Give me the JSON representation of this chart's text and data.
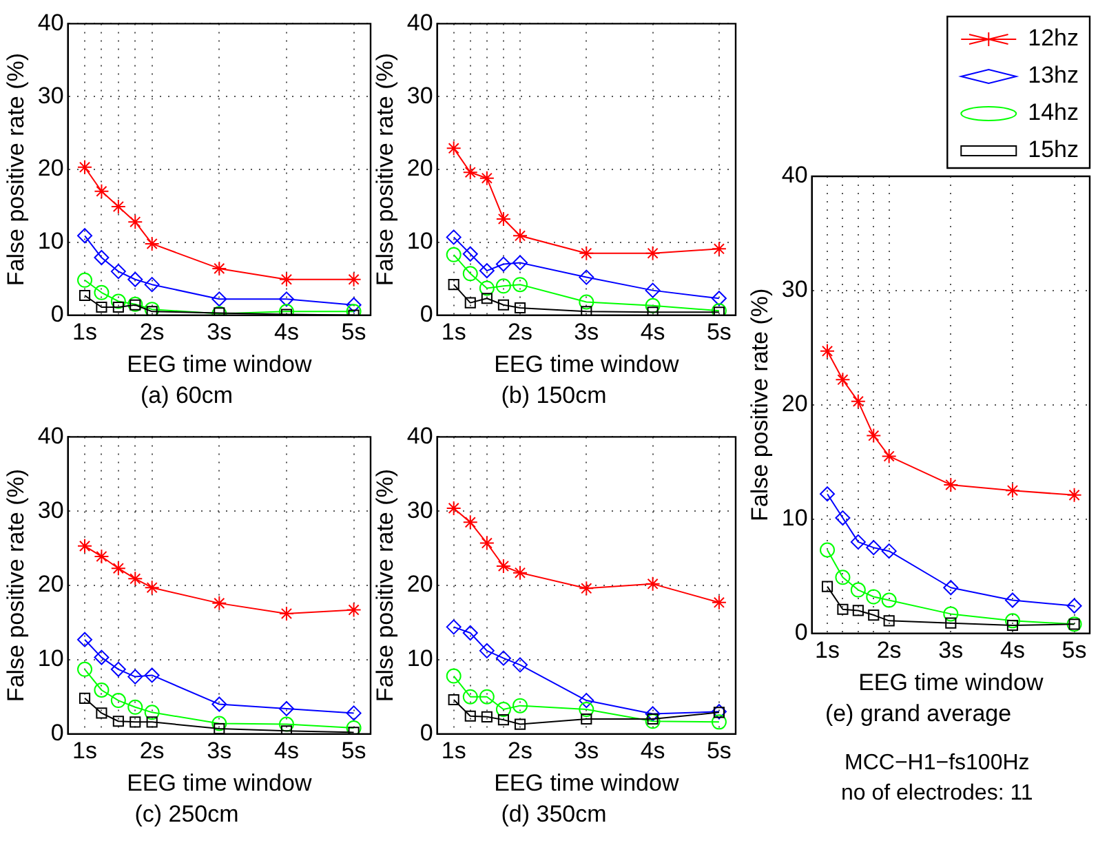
{
  "chart_data": [
    {
      "type": "line",
      "title": "(a) 60cm",
      "xlabel": "EEG time window",
      "ylabel": "False positive rate (%)",
      "x": [
        1,
        1.25,
        1.5,
        1.75,
        2,
        3,
        4,
        5
      ],
      "xlim": [
        0.75,
        5.25
      ],
      "xticks": [
        {
          "value": 1,
          "label": "1s"
        },
        {
          "value": 1.25,
          "label": null
        },
        {
          "value": 1.5,
          "label": null
        },
        {
          "value": 1.75,
          "label": null
        },
        {
          "value": 2,
          "label": "2s"
        },
        {
          "value": 3,
          "label": "3s"
        },
        {
          "value": 4,
          "label": "4s"
        },
        {
          "value": 5,
          "label": "5s"
        }
      ],
      "ylim": [
        0,
        40
      ],
      "yticks": [
        0,
        10,
        20,
        30,
        40
      ],
      "grid": true,
      "legend": false,
      "series": [
        {
          "color": "#ff0000",
          "marker": "cross",
          "values": [
            20.3,
            17.0,
            14.9,
            12.8,
            9.8,
            6.4,
            4.9,
            4.9
          ]
        },
        {
          "color": "#0000ff",
          "marker": "diamond",
          "values": [
            10.9,
            7.9,
            6.0,
            4.9,
            4.2,
            2.2,
            2.2,
            1.4
          ]
        },
        {
          "color": "#00ff00",
          "marker": "circle",
          "values": [
            4.8,
            3.1,
            1.9,
            1.5,
            0.8,
            0.2,
            0.5,
            0.5
          ]
        },
        {
          "color": "#000000",
          "marker": "square",
          "values": [
            2.7,
            1.1,
            1.1,
            1.4,
            0.5,
            0.3,
            0.1,
            0
          ]
        }
      ]
    },
    {
      "type": "line",
      "title": "(b) 150cm",
      "xlabel": "EEG time window",
      "ylabel": "False positive rate (%)",
      "x": [
        1,
        1.25,
        1.5,
        1.75,
        2,
        3,
        4,
        5
      ],
      "xlim": [
        0.75,
        5.25
      ],
      "xticks": [
        {
          "value": 1,
          "label": "1s"
        },
        {
          "value": 1.25,
          "label": null
        },
        {
          "value": 1.5,
          "label": null
        },
        {
          "value": 1.75,
          "label": null
        },
        {
          "value": 2,
          "label": "2s"
        },
        {
          "value": 3,
          "label": "3s"
        },
        {
          "value": 4,
          "label": "4s"
        },
        {
          "value": 5,
          "label": "5s"
        }
      ],
      "ylim": [
        0,
        40
      ],
      "yticks": [
        0,
        10,
        20,
        30,
        40
      ],
      "grid": true,
      "legend": false,
      "series": [
        {
          "color": "#ff0000",
          "marker": "cross",
          "values": [
            22.9,
            19.6,
            18.8,
            13.2,
            10.9,
            8.5,
            8.5,
            9.1
          ]
        },
        {
          "color": "#0000ff",
          "marker": "diamond",
          "values": [
            10.7,
            8.4,
            6.1,
            7.0,
            7.2,
            5.2,
            3.4,
            2.3
          ]
        },
        {
          "color": "#00ff00",
          "marker": "circle",
          "values": [
            8.3,
            5.7,
            3.7,
            4.0,
            4.2,
            1.8,
            1.3,
            0.6
          ]
        },
        {
          "color": "#000000",
          "marker": "square",
          "values": [
            4.2,
            1.7,
            2.3,
            1.4,
            1.0,
            0.5,
            0.4,
            0.4
          ]
        }
      ]
    },
    {
      "type": "line",
      "title": "(c) 250cm",
      "xlabel": "EEG time window",
      "ylabel": "False positive rate (%)",
      "x": [
        1,
        1.25,
        1.5,
        1.75,
        2,
        3,
        4,
        5
      ],
      "xlim": [
        0.75,
        5.25
      ],
      "xticks": [
        {
          "value": 1,
          "label": "1s"
        },
        {
          "value": 1.25,
          "label": null
        },
        {
          "value": 1.5,
          "label": null
        },
        {
          "value": 1.75,
          "label": null
        },
        {
          "value": 2,
          "label": "2s"
        },
        {
          "value": 3,
          "label": "3s"
        },
        {
          "value": 4,
          "label": "4s"
        },
        {
          "value": 5,
          "label": "5s"
        }
      ],
      "ylim": [
        0,
        40
      ],
      "yticks": [
        0,
        10,
        20,
        30,
        40
      ],
      "grid": true,
      "legend": false,
      "series": [
        {
          "color": "#ff0000",
          "marker": "cross",
          "values": [
            25.3,
            23.9,
            22.3,
            20.9,
            19.7,
            17.6,
            16.2,
            16.7
          ]
        },
        {
          "color": "#0000ff",
          "marker": "diamond",
          "values": [
            12.7,
            10.3,
            8.7,
            7.7,
            7.9,
            4.0,
            3.4,
            2.8
          ]
        },
        {
          "color": "#00ff00",
          "marker": "circle",
          "values": [
            8.7,
            5.9,
            4.5,
            3.6,
            2.9,
            1.4,
            1.3,
            0.8
          ]
        },
        {
          "color": "#000000",
          "marker": "square",
          "values": [
            4.8,
            2.8,
            1.7,
            1.6,
            1.6,
            0.7,
            0.4,
            0.2
          ]
        }
      ]
    },
    {
      "type": "line",
      "title": "(d) 350cm",
      "xlabel": "EEG time window",
      "ylabel": "False positive rate (%)",
      "x": [
        1,
        1.25,
        1.5,
        1.75,
        2,
        3,
        4,
        5
      ],
      "xlim": [
        0.75,
        5.25
      ],
      "xticks": [
        {
          "value": 1,
          "label": "1s"
        },
        {
          "value": 1.25,
          "label": null
        },
        {
          "value": 1.5,
          "label": null
        },
        {
          "value": 1.75,
          "label": null
        },
        {
          "value": 2,
          "label": "2s"
        },
        {
          "value": 3,
          "label": "3s"
        },
        {
          "value": 4,
          "label": "4s"
        },
        {
          "value": 5,
          "label": "5s"
        }
      ],
      "ylim": [
        0,
        40
      ],
      "yticks": [
        0,
        10,
        20,
        30,
        40
      ],
      "grid": true,
      "legend": false,
      "series": [
        {
          "color": "#ff0000",
          "marker": "cross",
          "values": [
            30.4,
            28.5,
            25.7,
            22.6,
            21.7,
            19.6,
            20.2,
            17.7
          ]
        },
        {
          "color": "#0000ff",
          "marker": "diamond",
          "values": [
            14.4,
            13.6,
            11.2,
            10.2,
            9.3,
            4.5,
            2.7,
            3.0
          ]
        },
        {
          "color": "#00ff00",
          "marker": "circle",
          "values": [
            7.8,
            5.0,
            5.0,
            3.3,
            3.8,
            3.3,
            1.7,
            1.6
          ]
        },
        {
          "color": "#000000",
          "marker": "square",
          "values": [
            4.6,
            2.4,
            2.3,
            1.9,
            1.3,
            2.0,
            2.0,
            2.9
          ]
        }
      ]
    },
    {
      "type": "line",
      "title": "(e) grand average",
      "xlabel": "EEG time window",
      "ylabel": "False positive rate (%)",
      "x": [
        1,
        1.25,
        1.5,
        1.75,
        2,
        3,
        4,
        5
      ],
      "xlim": [
        0.75,
        5.25
      ],
      "xticks": [
        {
          "value": 1,
          "label": "1s"
        },
        {
          "value": 1.25,
          "label": null
        },
        {
          "value": 1.5,
          "label": null
        },
        {
          "value": 1.75,
          "label": null
        },
        {
          "value": 2,
          "label": "2s"
        },
        {
          "value": 3,
          "label": "3s"
        },
        {
          "value": 4,
          "label": "4s"
        },
        {
          "value": 5,
          "label": "5s"
        }
      ],
      "ylim": [
        0,
        40
      ],
      "yticks": [
        0,
        10,
        20,
        30,
        40
      ],
      "grid": true,
      "legend": "top right",
      "annotations": [
        "MCC−H1−fs100Hz",
        "no of electrodes: 11"
      ],
      "series": [
        {
          "name": "12hz",
          "color": "#ff0000",
          "marker": "cross",
          "values": [
            24.7,
            22.2,
            20.3,
            17.3,
            15.5,
            13.0,
            12.5,
            12.1
          ]
        },
        {
          "name": "13hz",
          "color": "#0000ff",
          "marker": "diamond",
          "values": [
            12.2,
            10.1,
            8.0,
            7.5,
            7.2,
            4.0,
            2.9,
            2.4
          ]
        },
        {
          "name": "14hz",
          "color": "#00ff00",
          "marker": "circle",
          "values": [
            7.3,
            4.9,
            3.8,
            3.2,
            2.9,
            1.7,
            1.1,
            0.8
          ]
        },
        {
          "name": "15hz",
          "color": "#000000",
          "marker": "square",
          "values": [
            4.1,
            2.1,
            2.0,
            1.6,
            1.1,
            0.9,
            0.7,
            0.8
          ]
        }
      ]
    }
  ]
}
